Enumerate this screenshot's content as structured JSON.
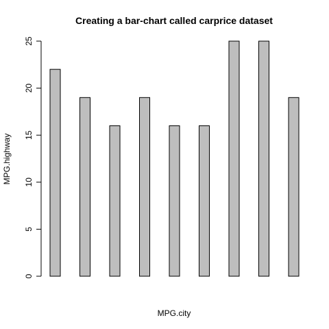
{
  "chart_data": {
    "type": "bar",
    "title": "Creating a bar-chart called carprice dataset",
    "xlabel": "MPG.city",
    "ylabel": "MPG.highway",
    "categories": [
      "",
      "",
      "",
      "",
      "",
      "",
      "",
      "",
      ""
    ],
    "values": [
      22,
      19,
      16,
      19,
      16,
      16,
      25,
      25,
      19
    ],
    "ylim": [
      0,
      25
    ],
    "yticks": [
      "0",
      "5",
      "10",
      "15",
      "20",
      "25"
    ],
    "grid": false,
    "legend": "none",
    "colors": {
      "bar_fill": "#bebebe",
      "bar_stroke": "#000000"
    }
  }
}
